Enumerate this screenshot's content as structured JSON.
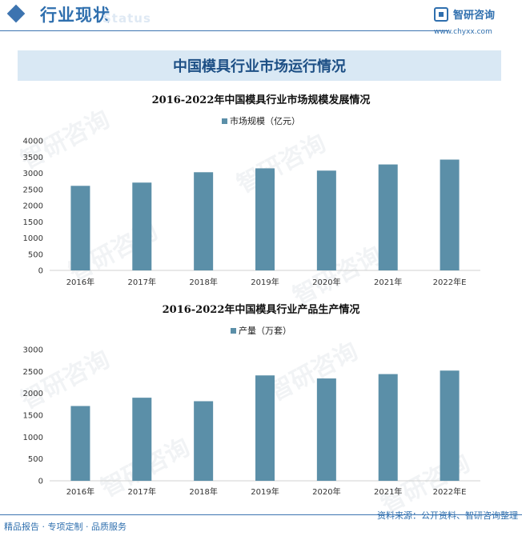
{
  "header": {
    "title": "行业现状",
    "ghost": "Status",
    "brand_name": "智研咨询",
    "brand_url": "www.chyxx.com"
  },
  "banner": "中国模具行业市场运行情况",
  "watermark_text": "智研咨询",
  "colors": {
    "bar": "#5b8fa8",
    "accent": "#2f6fae",
    "banner": "#d9e8f4"
  },
  "chart_data": [
    {
      "type": "bar",
      "title": "2016-2022年中国模具行业市场规模发展情况",
      "legend": "市场规模（亿元）",
      "categories": [
        "2016年",
        "2017年",
        "2018年",
        "2019年",
        "2020年",
        "2021年",
        "2022年E"
      ],
      "series": [
        {
          "name": "市场规模（亿元）",
          "values": [
            2610,
            2710,
            3030,
            3150,
            3080,
            3270,
            3420
          ]
        }
      ],
      "yticks": [
        "0",
        "500",
        "1000",
        "1500",
        "2000",
        "2500",
        "3000",
        "3500",
        "4000"
      ],
      "ylim": [
        0,
        4000
      ]
    },
    {
      "type": "bar",
      "title": "2016-2022年中国模具行业产品生产情况",
      "legend": "产量（万套）",
      "categories": [
        "2016年",
        "2017年",
        "2018年",
        "2019年",
        "2020年",
        "2021年",
        "2022年E"
      ],
      "series": [
        {
          "name": "产量（万套）",
          "values": [
            1710,
            1900,
            1820,
            2410,
            2340,
            2440,
            2520
          ]
        }
      ],
      "yticks": [
        "0",
        "500",
        "1000",
        "1500",
        "2000",
        "2500",
        "3000"
      ],
      "ylim": [
        0,
        3000
      ]
    }
  ],
  "footer": {
    "left": "精品报告 · 专项定制 · 品质服务",
    "right": "资料来源：公开资料、智研咨询整理"
  }
}
